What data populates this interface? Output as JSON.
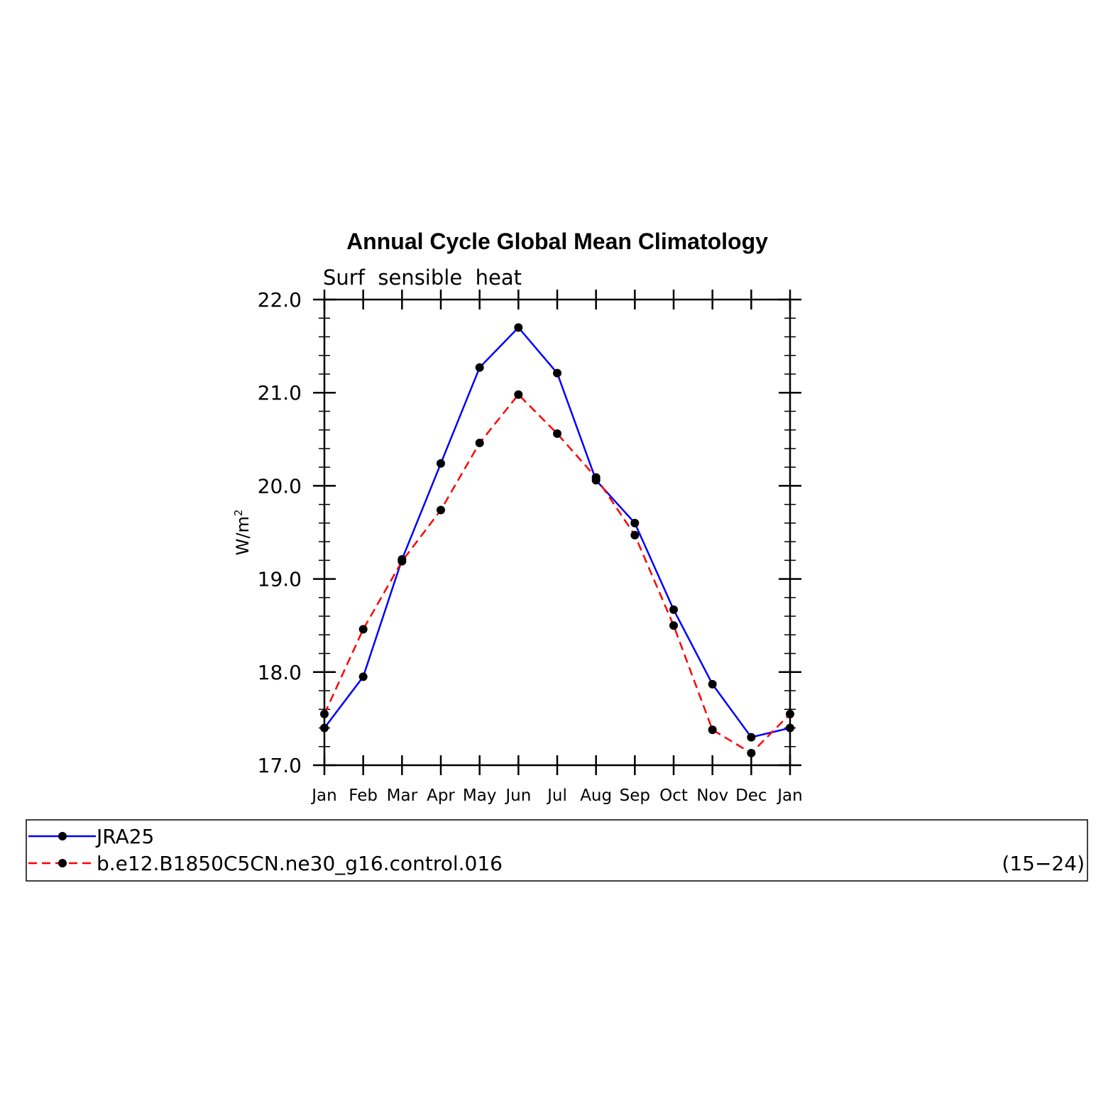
{
  "chart_data": {
    "type": "line",
    "title": "Annual Cycle Global Mean Climatology",
    "subtitle": "Surf  sensible  heat",
    "ylabel": "W/m",
    "ylabel_superscript": "2",
    "xlabel": "",
    "ylim": [
      17.0,
      22.0
    ],
    "y_tick_labels": [
      "17.0",
      "18.0",
      "19.0",
      "20.0",
      "21.0",
      "22.0"
    ],
    "categories": [
      "Jan",
      "Feb",
      "Mar",
      "Apr",
      "May",
      "Jun",
      "Jul",
      "Aug",
      "Sep",
      "Oct",
      "Nov",
      "Dec",
      "Jan"
    ],
    "grid": false,
    "series": [
      {
        "name": "JRA25",
        "color": "#0000ff",
        "dash": "solid",
        "values": [
          17.4,
          17.95,
          19.21,
          20.24,
          21.27,
          21.7,
          21.21,
          20.06,
          19.6,
          18.67,
          17.87,
          17.3,
          17.4
        ]
      },
      {
        "name": "b.e12.B1850C5CN.ne30_g16.control.016",
        "color": "#ff0000",
        "dash": "dashed",
        "values": [
          17.55,
          18.46,
          19.19,
          19.74,
          20.46,
          20.98,
          20.56,
          20.09,
          19.47,
          18.5,
          17.38,
          17.13,
          17.55
        ]
      }
    ],
    "legend": {
      "placement": "bottom",
      "years_note": "(15−24)"
    }
  }
}
